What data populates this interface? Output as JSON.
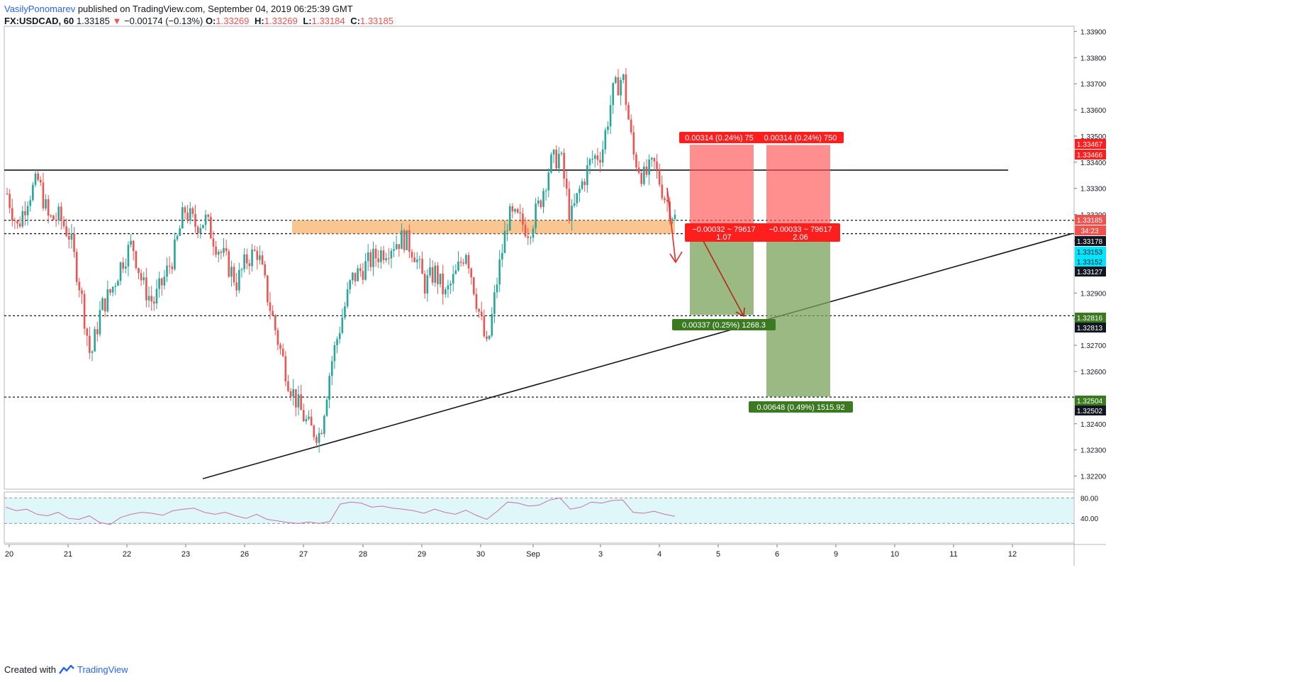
{
  "header": {
    "author": "VasilyPonomarev",
    "published": "published on TradingView.com, September 04, 2019 06:25:39 GMT",
    "symbol": "FX:USDCAD, 60",
    "last": "1.33185",
    "arrow": "▼",
    "change": "−0.00174 (−0.13%)",
    "o_label": "O:",
    "o": "1.33269",
    "h_label": "H:",
    "h": "1.33269",
    "l_label": "L:",
    "l": "1.33184",
    "c_label": "C:",
    "c": "1.33185"
  },
  "footer": {
    "created": "Created with",
    "brand": "TradingView"
  },
  "colors": {
    "up": "#26a69a",
    "down": "#ef5350",
    "zone": "#f7b26b",
    "stop": "#ff5252",
    "target": "#7aa35a",
    "rsi_line": "#c971a8",
    "rsi_band": "#e0f7fa"
  },
  "chart_data": {
    "type": "candlestick",
    "symbol": "USDCAD",
    "timeframe": "60",
    "ylim": [
      1.3215,
      1.3392
    ],
    "y_ticks": [
      "1.33900",
      "1.33800",
      "1.33700",
      "1.33600",
      "1.33500",
      "1.33400",
      "1.33300",
      "1.33200",
      "1.33100",
      "1.33000",
      "1.32900",
      "1.32800",
      "1.32700",
      "1.32600",
      "1.32500",
      "1.32400",
      "1.32300",
      "1.32200"
    ],
    "x_ticks": [
      "20",
      "21",
      "22",
      "23",
      "26",
      "27",
      "28",
      "29",
      "30",
      "Sep",
      "3",
      "4",
      "5",
      "6",
      "9",
      "10",
      "11",
      "12"
    ],
    "close_path": [
      1.3328,
      1.3315,
      1.3327,
      1.3333,
      1.3318,
      1.3319,
      1.3312,
      1.3292,
      1.3265,
      1.3284,
      1.3291,
      1.3302,
      1.3309,
      1.3293,
      1.3286,
      1.3295,
      1.3305,
      1.3322,
      1.3316,
      1.3318,
      1.3309,
      1.3302,
      1.3294,
      1.3303,
      1.3306,
      1.3288,
      1.3271,
      1.3256,
      1.3246,
      1.3238,
      1.3236,
      1.3262,
      1.3279,
      1.3295,
      1.3299,
      1.3303,
      1.3306,
      1.3309,
      1.3311,
      1.3306,
      1.3293,
      1.3298,
      1.3289,
      1.3297,
      1.3307,
      1.3287,
      1.3268,
      1.3296,
      1.3319,
      1.3318,
      1.3314,
      1.3324,
      1.3339,
      1.3343,
      1.3318,
      1.3331,
      1.3341,
      1.3344,
      1.3366,
      1.3373,
      1.3343,
      1.3334,
      1.3339,
      1.3327,
      1.33185
    ],
    "last_price": "1.33185",
    "countdown": "34:23",
    "price_labels": [
      {
        "text": "1.33467",
        "kind": "stop"
      },
      {
        "text": "1.33466",
        "kind": "stop"
      },
      {
        "text": "1.33185",
        "kind": "last"
      },
      {
        "text": "1.33178",
        "kind": "level"
      },
      {
        "text": "1.33153",
        "kind": "cyan"
      },
      {
        "text": "1.33152",
        "kind": "cyan"
      },
      {
        "text": "1.33127",
        "kind": "level"
      },
      {
        "text": "1.32816",
        "kind": "target"
      },
      {
        "text": "1.32813",
        "kind": "level"
      },
      {
        "text": "1.32504",
        "kind": "target"
      },
      {
        "text": "1.32502",
        "kind": "level"
      }
    ],
    "horizontal_levels": [
      1.33178,
      1.33127,
      1.32813,
      1.32502
    ],
    "resistance_line_price": 1.3337,
    "zone": {
      "top": 1.33178,
      "bottom": 1.33127
    },
    "trendline": {
      "from_price": 1.3219,
      "to_price": 1.33127
    },
    "positions": [
      {
        "entry": 1.33153,
        "stop": 1.33467,
        "stop_label": "0.00314 (0.24%) 750",
        "stop_label_shown": "0.00314 (0.24%) 75",
        "mid_label": "−0.00032 ~ 79617",
        "ratio": "1.07",
        "target": 1.32816,
        "target_label": "0.00337 (0.25%) 1268.31",
        "target_label_shown": "0.00337 (0.25%) 1268.3"
      },
      {
        "entry": 1.33152,
        "stop": 1.33466,
        "stop_label": "0.00314 (0.24%) 750",
        "mid_label": "−0.00033 ~ 79617",
        "ratio": "2.06",
        "target": 1.32504,
        "target_label": "0.00648 (0.49%) 1515.92"
      }
    ],
    "rsi": {
      "ticks": [
        "80.00",
        "40.00"
      ],
      "upper": 80,
      "lower": 30,
      "values": [
        62,
        55,
        58,
        48,
        45,
        52,
        40,
        38,
        45,
        32,
        28,
        42,
        48,
        52,
        50,
        46,
        55,
        58,
        60,
        52,
        48,
        52,
        45,
        40,
        48,
        38,
        35,
        32,
        30,
        33,
        30,
        34,
        68,
        72,
        70,
        62,
        64,
        60,
        58,
        55,
        50,
        58,
        52,
        48,
        56,
        46,
        38,
        54,
        72,
        70,
        64,
        66,
        76,
        80,
        58,
        62,
        72,
        70,
        75,
        76,
        52,
        50,
        54,
        48,
        44
      ]
    }
  }
}
